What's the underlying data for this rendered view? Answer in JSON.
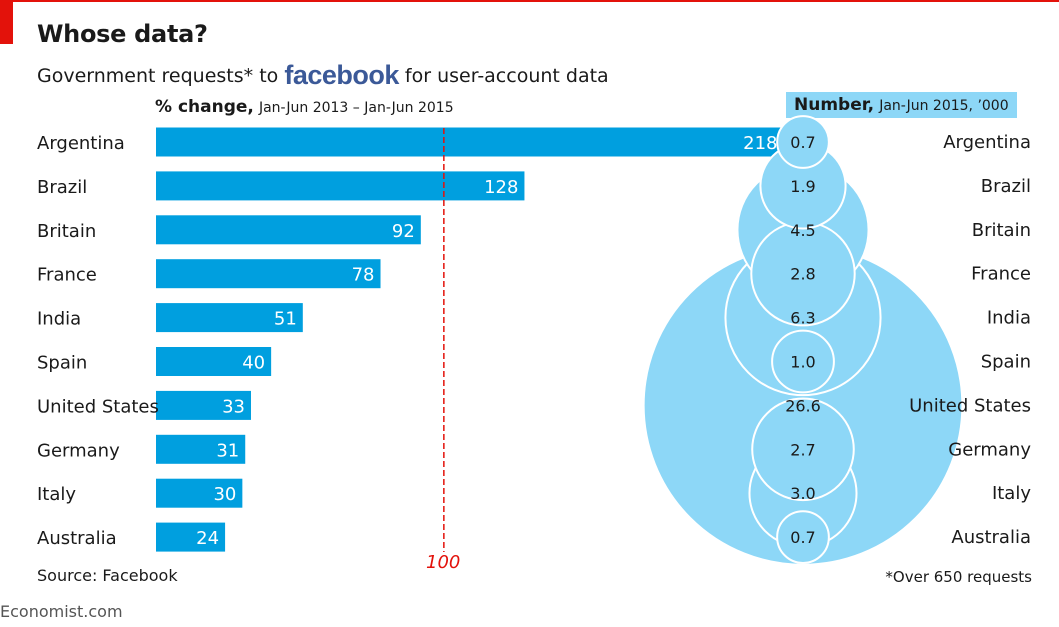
{
  "header": {
    "title": "Whose data?",
    "subtitle_pre": "Government requests* to",
    "subtitle_brand": "facebook",
    "subtitle_post": "for user-account data"
  },
  "left_header": {
    "bold": "% change,",
    "range": "Jan-Jun 2013 – Jan-Jun 2015"
  },
  "right_header": {
    "bold": "Number,",
    "range": "Jan-Jun 2015, ’000"
  },
  "source": "Source: Facebook",
  "footnote": "*Over 650 requests",
  "reference_label": "100",
  "brand": "Economist.com",
  "colors": {
    "bar": "#009fdf",
    "bubble": "#8dd7f7",
    "accent": "#e3120b"
  },
  "chart_data": [
    {
      "type": "bar",
      "orientation": "horizontal",
      "categories": [
        "Argentina",
        "Brazil",
        "Britain",
        "France",
        "India",
        "Spain",
        "United States",
        "Germany",
        "Italy",
        "Australia"
      ],
      "values": [
        218,
        128,
        92,
        78,
        51,
        40,
        33,
        31,
        30,
        24
      ],
      "xlabel": "% change, Jan-Jun 2013 – Jan-Jun 2015",
      "reference_line": 100,
      "xlim": [
        0,
        220
      ]
    },
    {
      "type": "scatter",
      "encoding": "bubble",
      "categories": [
        "Argentina",
        "Brazil",
        "Britain",
        "France",
        "India",
        "Spain",
        "United States",
        "Germany",
        "Italy",
        "Australia"
      ],
      "values": [
        0.7,
        1.9,
        4.5,
        2.8,
        6.3,
        1.0,
        26.6,
        2.7,
        3.0,
        0.7
      ],
      "labels": [
        "0.7",
        "1.9",
        "4.5",
        "2.8",
        "6.3",
        "1.0",
        "26.6",
        "2.7",
        "3.0",
        "0.7"
      ],
      "xlabel": "Number, Jan-Jun 2015, ’000"
    }
  ]
}
